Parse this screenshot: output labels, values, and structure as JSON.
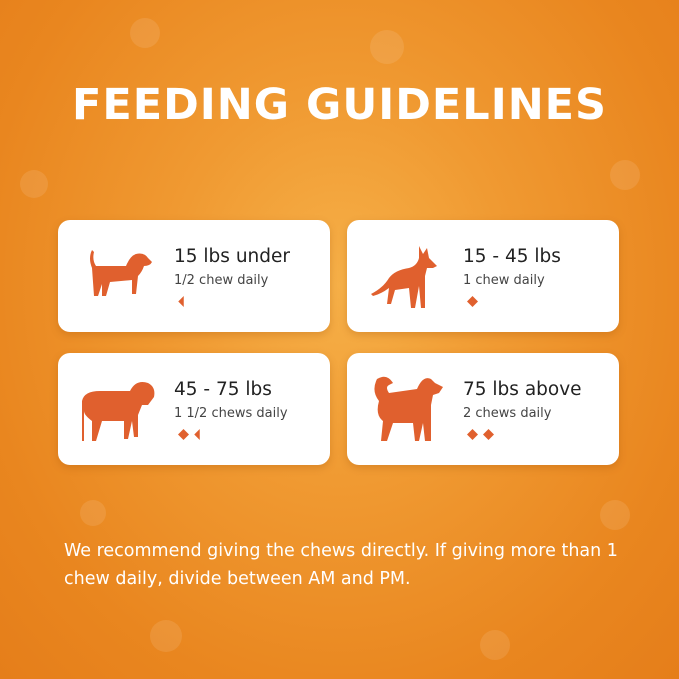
{
  "title": "FEEDING GUIDELINES",
  "colors": {
    "accent": "#e0602e",
    "background": "#ef9530",
    "text": "#222222"
  },
  "cards": [
    {
      "weight": "15 lbs under",
      "dose": "1/2 chew daily",
      "chews": 0.5,
      "icon": "small-dog-icon"
    },
    {
      "weight": "15 - 45 lbs",
      "dose": "1 chew daily",
      "chews": 1,
      "icon": "great-dane-icon"
    },
    {
      "weight": "45 - 75 lbs",
      "dose": "1 1/2 chews daily",
      "chews": 1.5,
      "icon": "mastiff-icon"
    },
    {
      "weight": "75 lbs above",
      "dose": "2 chews daily",
      "chews": 2,
      "icon": "husky-icon"
    }
  ],
  "note": "We recommend giving the chews directly. If giving more than 1 chew daily, divide between AM and PM."
}
